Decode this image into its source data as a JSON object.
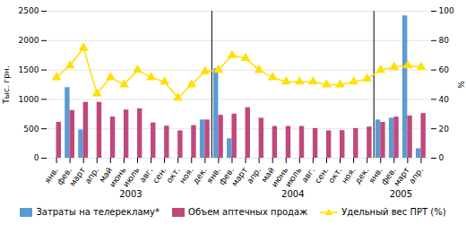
{
  "chart_data": {
    "type": "bar",
    "categories": [
      "янв.",
      "фев.",
      "март",
      "апр.",
      "май",
      "июнь",
      "июль",
      "авг.",
      "сен.",
      "окт.",
      "ноя.",
      "дек.",
      "янв.",
      "фев.",
      "март",
      "апр.",
      "май",
      "июнь",
      "июль",
      "авг.",
      "сен.",
      "окт.",
      "ноя.",
      "дек.",
      "янв.",
      "фев.",
      "март",
      "апр."
    ],
    "series": [
      {
        "name": "Затраты на телерекламу*",
        "type": "bar",
        "color": "#5b9bd5",
        "values": [
          0,
          1200,
          480,
          0,
          0,
          0,
          0,
          0,
          0,
          0,
          0,
          650,
          1520,
          330,
          0,
          0,
          0,
          0,
          0,
          0,
          0,
          0,
          0,
          0,
          650,
          680,
          2420,
          160
        ]
      },
      {
        "name": "Объем аптечных продаж",
        "type": "bar",
        "color": "#c0487a",
        "values": [
          610,
          810,
          950,
          950,
          700,
          820,
          840,
          600,
          545,
          465,
          555,
          650,
          730,
          750,
          860,
          680,
          540,
          540,
          540,
          505,
          465,
          470,
          505,
          530,
          610,
          700,
          720,
          760
        ]
      },
      {
        "name": "Удельный вес ПРТ (%)",
        "type": "line",
        "axis": "y2",
        "color": "#ffe000",
        "marker": "triangle",
        "values": [
          55,
          63,
          75,
          44,
          55,
          50,
          60,
          55,
          52,
          41,
          50,
          59,
          60,
          70,
          68,
          60,
          55,
          52,
          52,
          52,
          50,
          50,
          52,
          54,
          60,
          62,
          63,
          62
        ]
      }
    ],
    "ylabel": "Тыс. грн.",
    "y2label": "%",
    "ylim": [
      0,
      2500
    ],
    "yticks": [
      0,
      500,
      1000,
      1500,
      2000,
      2500
    ],
    "y2lim": [
      0,
      100
    ],
    "y2ticks": [
      0,
      20,
      40,
      60,
      80,
      100
    ],
    "grid": true,
    "legend": "bottom",
    "annotations": [
      {
        "text": "2003",
        "x": 5.5
      },
      {
        "text": "2004",
        "x": 17.5
      },
      {
        "text": "2005",
        "x": 25.5
      }
    ],
    "vlines": [
      11.5,
      23.5
    ]
  }
}
